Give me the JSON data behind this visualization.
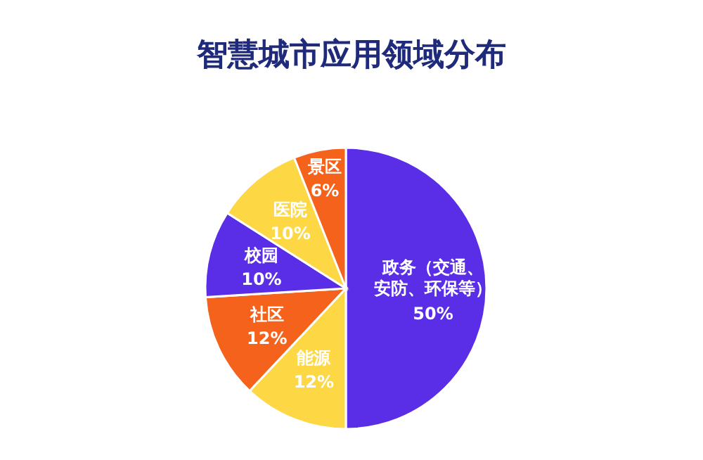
{
  "chart_data": {
    "type": "pie",
    "title": "智慧城市应用领域分布",
    "categories": [
      "政务（交通、安防、环保等）",
      "能源",
      "社区",
      "校园",
      "医院",
      "景区"
    ],
    "values": [
      50,
      12,
      12,
      10,
      10,
      6
    ],
    "value_labels": [
      "50%",
      "12%",
      "12%",
      "10%",
      "10%",
      "6%"
    ],
    "colors": [
      "#5a2ee6",
      "#fdd844",
      "#f4621c",
      "#5a2ee6",
      "#fdd844",
      "#f4621c"
    ]
  }
}
